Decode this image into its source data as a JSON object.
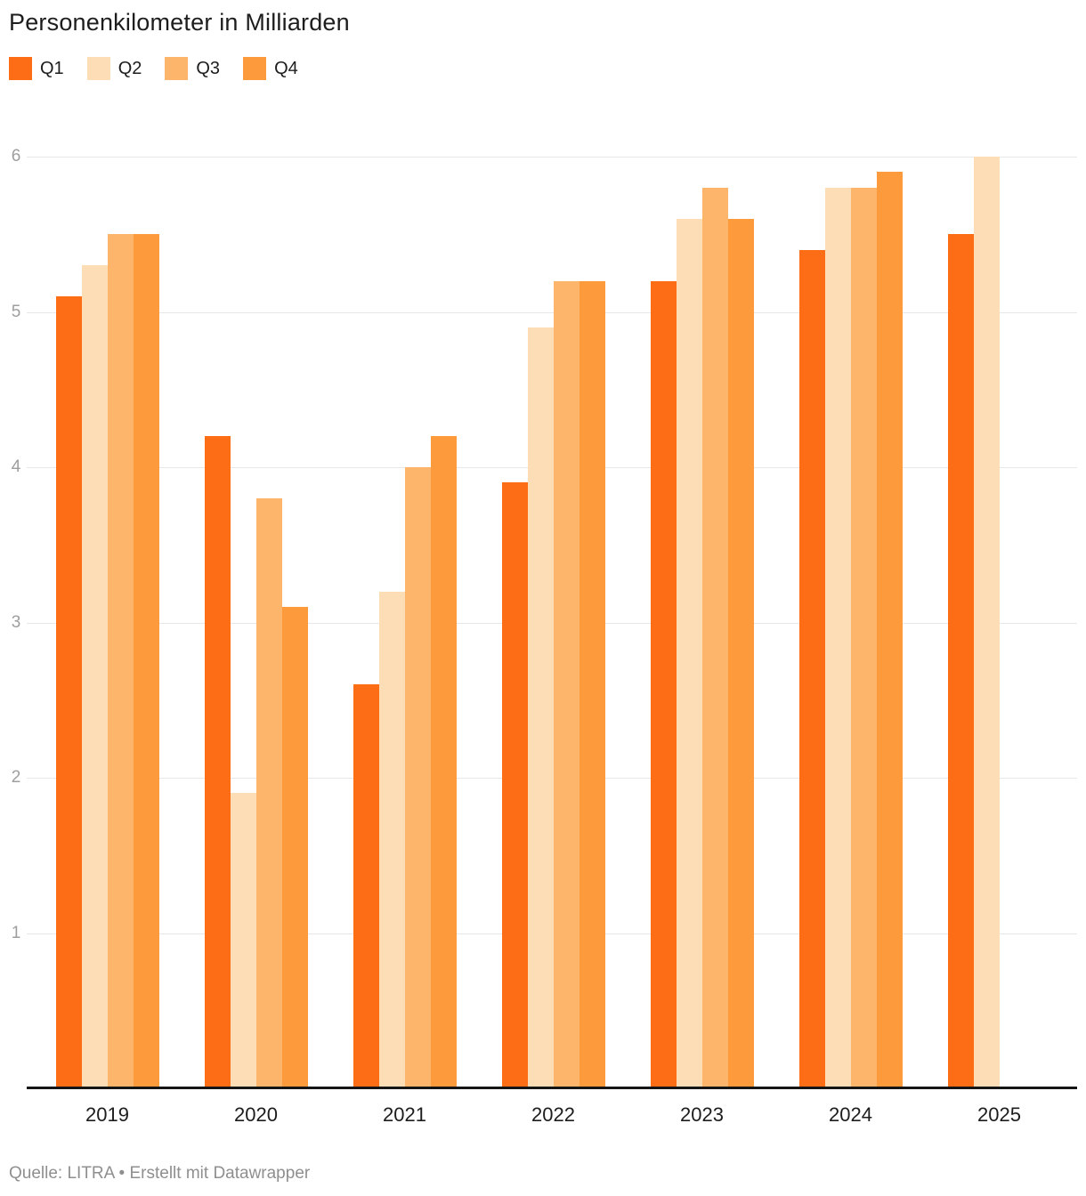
{
  "chart_data": {
    "type": "bar",
    "title": "Personenkilometer in Milliarden",
    "xlabel": "",
    "ylabel": "",
    "categories": [
      "2019",
      "2020",
      "2021",
      "2022",
      "2023",
      "2024",
      "2025"
    ],
    "series": [
      {
        "name": "Q1",
        "color": "#FC6D16",
        "values": [
          5.1,
          4.2,
          2.6,
          3.9,
          5.2,
          5.4,
          5.5
        ]
      },
      {
        "name": "Q2",
        "color": "#FDDDB5",
        "values": [
          5.3,
          1.9,
          3.2,
          4.9,
          5.6,
          5.8,
          6.0
        ]
      },
      {
        "name": "Q3",
        "color": "#FCB56B",
        "values": [
          5.5,
          3.8,
          4.0,
          5.2,
          5.8,
          5.8,
          null
        ]
      },
      {
        "name": "Q4",
        "color": "#FC9A3C",
        "values": [
          5.5,
          3.1,
          4.2,
          5.2,
          5.6,
          5.9,
          null
        ]
      }
    ],
    "ylim": [
      0,
      6
    ],
    "yticks": [
      1,
      2,
      3,
      4,
      5,
      6
    ],
    "grid": true,
    "legend_position": "top"
  },
  "footer": {
    "source": "Quelle: LITRA • Erstellt mit Datawrapper"
  }
}
